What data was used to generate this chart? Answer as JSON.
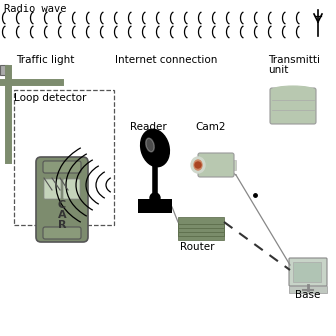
{
  "bg_color": "#ffffff",
  "radio_wave_label": "Radio wave",
  "labels": {
    "traffic_light": "Traffic light",
    "loop_detector": "Loop detector",
    "reader": "Reader",
    "cam2": "Cam2",
    "internet": "Internet connection",
    "transmitting_line1": "Transmitti",
    "transmitting_line2": "unit",
    "router": "Router",
    "base": "Base"
  },
  "car_letters": [
    "C",
    "A",
    "R"
  ],
  "car_color": "#7d8c6e",
  "car_edge": "#555555",
  "traffic_light_color": "#7d8c6e",
  "reader_color": "#111111",
  "router_color": "#7a8c6a",
  "server_color": "#b8c8b0",
  "cam_color": "#b8c8b0",
  "line_color": "#888888",
  "dashed_color": "#333333",
  "wave_color": "#555555",
  "font_size": 7.5
}
